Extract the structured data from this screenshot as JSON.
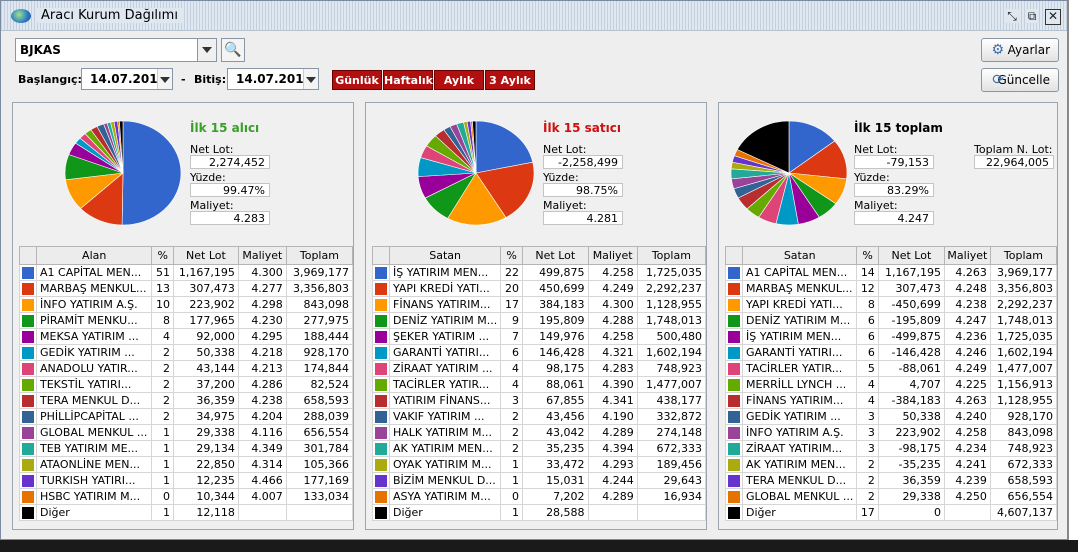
{
  "window": {
    "title": "Aracı Kurum Dağılımı"
  },
  "toolbar": {
    "symbol": "BJKAS",
    "start_label": "Başlangıç:",
    "start_date": "14.07.2016",
    "dash": "-",
    "end_label": "Bitiş:",
    "end_date": "14.07.2016",
    "periods": [
      "Günlük",
      "Haftalık",
      "Aylık",
      "3 Aylık"
    ],
    "settings_label": "Ayarlar",
    "refresh_label": "Güncelle"
  },
  "headers": {
    "buyers": [
      "",
      "Alan",
      "%",
      "Net Lot",
      "Maliyet",
      "Toplam"
    ],
    "sellers": [
      "",
      "Satan",
      "%",
      "Net Lot",
      "Maliyet",
      "Toplam"
    ],
    "total": [
      "",
      "Satan",
      "%",
      "Net Lot",
      "Maliyet",
      "Toplam"
    ]
  },
  "colors": {
    "title_buy": "#3aa02a",
    "title_sell": "#d01010",
    "title_total": "#000000",
    "sw": [
      "#3366cc",
      "#dc3912",
      "#ff9900",
      "#109618",
      "#990099",
      "#0099c6",
      "#dd4477",
      "#66aa00",
      "#b82e2e",
      "#316395",
      "#994499",
      "#22aa99",
      "#aaaa11",
      "#6633cc",
      "#e67300",
      "#000000"
    ]
  },
  "panels": {
    "buyers": {
      "title": "İlk 15 alıcı",
      "net_lot_label": "Net Lot:",
      "net_lot": "2,274,452",
      "yuzde_label": "Yüzde:",
      "yuzde": "99.47%",
      "maliyet_label": "Maliyet:",
      "maliyet": "4.283",
      "rows": [
        [
          "A1 CAPİTAL MEN...",
          "51",
          "1,167,195",
          "4.300",
          "3,969,177"
        ],
        [
          "MARBAŞ MENKUL...",
          "13",
          "307,473",
          "4.277",
          "3,356,803"
        ],
        [
          "İNFO YATIRIM A.Ş.",
          "10",
          "223,902",
          "4.298",
          "843,098"
        ],
        [
          "PİRAMİT MENKU...",
          "8",
          "177,965",
          "4.230",
          "277,975"
        ],
        [
          "MEKSA YATIRIM ...",
          "4",
          "92,000",
          "4.295",
          "188,444"
        ],
        [
          "GEDİK YATIRIM ...",
          "2",
          "50,338",
          "4.218",
          "928,170"
        ],
        [
          "ANADOLU YATIR...",
          "2",
          "43,144",
          "4.213",
          "174,844"
        ],
        [
          "TEKSTİL YATIRI...",
          "2",
          "37,200",
          "4.286",
          "82,524"
        ],
        [
          "TERA MENKUL D...",
          "2",
          "36,359",
          "4.238",
          "658,593"
        ],
        [
          "PHİLLİPCAPİTAL ...",
          "2",
          "34,975",
          "4.204",
          "288,039"
        ],
        [
          "GLOBAL MENKUL ...",
          "1",
          "29,338",
          "4.116",
          "656,554"
        ],
        [
          "TEB YATIRIM ME...",
          "1",
          "29,134",
          "4.349",
          "301,784"
        ],
        [
          "ATAONLİNE MEN...",
          "1",
          "22,850",
          "4.314",
          "105,366"
        ],
        [
          "TURKISH YATIRI...",
          "1",
          "12,235",
          "4.466",
          "177,169"
        ],
        [
          "HSBC YATIRIM M...",
          "0",
          "10,344",
          "4.007",
          "133,034"
        ],
        [
          "Diğer",
          "1",
          "12,118",
          "",
          ""
        ]
      ]
    },
    "sellers": {
      "title": "İlk 15 satıcı",
      "net_lot_label": "Net Lot:",
      "net_lot": "-2,258,499",
      "yuzde_label": "Yüzde:",
      "yuzde": "98.75%",
      "maliyet_label": "Maliyet:",
      "maliyet": "4.281",
      "rows": [
        [
          "İŞ YATIRIM  MEN...",
          "22",
          "499,875",
          "4.258",
          "1,725,035"
        ],
        [
          "YAPI KREDİ YATI...",
          "20",
          "450,699",
          "4.249",
          "2,292,237"
        ],
        [
          "FİNANS YATIRIM...",
          "17",
          "384,183",
          "4.300",
          "1,128,955"
        ],
        [
          "DENİZ YATIRIM M...",
          "9",
          "195,809",
          "4.288",
          "1,748,013"
        ],
        [
          "ŞEKER YATIRIM ...",
          "7",
          "149,976",
          "4.258",
          "500,480"
        ],
        [
          "GARANTİ YATIRI...",
          "6",
          "146,428",
          "4.321",
          "1,602,194"
        ],
        [
          "ZİRAAT YATIRIM ...",
          "4",
          "98,175",
          "4.283",
          "748,923"
        ],
        [
          "TACİRLER YATIR...",
          "4",
          "88,061",
          "4.390",
          "1,477,007"
        ],
        [
          "YATIRIM FİNANS...",
          "3",
          "67,855",
          "4.341",
          "438,177"
        ],
        [
          "VAKIF YATIRIM ...",
          "2",
          "43,456",
          "4.190",
          "332,872"
        ],
        [
          "HALK YATIRIM M...",
          "2",
          "43,042",
          "4.289",
          "274,148"
        ],
        [
          "AK YATIRIM MEN...",
          "2",
          "35,235",
          "4.394",
          "672,333"
        ],
        [
          "OYAK YATIRIM M...",
          "1",
          "33,472",
          "4.293",
          "189,456"
        ],
        [
          "BİZİM MENKUL D...",
          "1",
          "15,031",
          "4.244",
          "29,643"
        ],
        [
          "ASYA YATIRIM M...",
          "0",
          "7,202",
          "4.289",
          "16,934"
        ],
        [
          "Diğer",
          "1",
          "28,588",
          "",
          ""
        ]
      ]
    },
    "total": {
      "title": "İlk 15 toplam",
      "net_lot_label": "Net Lot:",
      "net_lot": "-79,153",
      "yuzde_label": "Yüzde:",
      "yuzde": "83.29%",
      "maliyet_label": "Maliyet:",
      "maliyet": "4.247",
      "toplam_label": "Toplam N. Lot:",
      "toplam": "22,964,005",
      "rows": [
        [
          "A1 CAPİTAL MEN...",
          "14",
          "1,167,195",
          "4.263",
          "3,969,177"
        ],
        [
          "MARBAŞ MENKUL...",
          "12",
          "307,473",
          "4.248",
          "3,356,803"
        ],
        [
          "YAPI KREDİ YATI...",
          "8",
          "-450,699",
          "4.238",
          "2,292,237"
        ],
        [
          "DENİZ YATIRIM M...",
          "6",
          "-195,809",
          "4.247",
          "1,748,013"
        ],
        [
          "İŞ YATIRIM  MEN...",
          "6",
          "-499,875",
          "4.236",
          "1,725,035"
        ],
        [
          "GARANTİ YATIRI...",
          "6",
          "-146,428",
          "4.246",
          "1,602,194"
        ],
        [
          "TACİRLER YATIR...",
          "5",
          "-88,061",
          "4.249",
          "1,477,007"
        ],
        [
          "MERRİLL LYNCH ...",
          "4",
          "4,707",
          "4.225",
          "1,156,913"
        ],
        [
          "FİNANS YATIRIM...",
          "4",
          "-384,183",
          "4.263",
          "1,128,955"
        ],
        [
          "GEDİK YATIRIM ...",
          "3",
          "50,338",
          "4.240",
          "928,170"
        ],
        [
          "İNFO YATIRIM A.Ş.",
          "3",
          "223,902",
          "4.258",
          "843,098"
        ],
        [
          "ZİRAAT YATIRIM...",
          "3",
          "-98,175",
          "4.234",
          "748,923"
        ],
        [
          "AK YATIRIM MEN...",
          "2",
          "-35,235",
          "4.241",
          "672,333"
        ],
        [
          "TERA MENKUL D...",
          "2",
          "36,359",
          "4.239",
          "658,593"
        ],
        [
          "GLOBAL MENKUL ...",
          "2",
          "29,338",
          "4.250",
          "656,554"
        ],
        [
          "Diğer",
          "17",
          "0",
          "",
          "4,607,137"
        ]
      ]
    }
  },
  "pie": {
    "buyers": [
      51,
      13,
      10,
      8,
      4,
      2,
      2,
      2,
      2,
      2,
      1,
      1,
      1,
      1,
      0.5,
      1
    ],
    "sellers": [
      22,
      20,
      17,
      9,
      7,
      6,
      4,
      4,
      3,
      2,
      2,
      2,
      1,
      1,
      0.5,
      1
    ],
    "total": [
      14,
      12,
      8,
      6,
      6,
      6,
      5,
      4,
      4,
      3,
      3,
      3,
      2,
      2,
      2,
      17
    ]
  }
}
